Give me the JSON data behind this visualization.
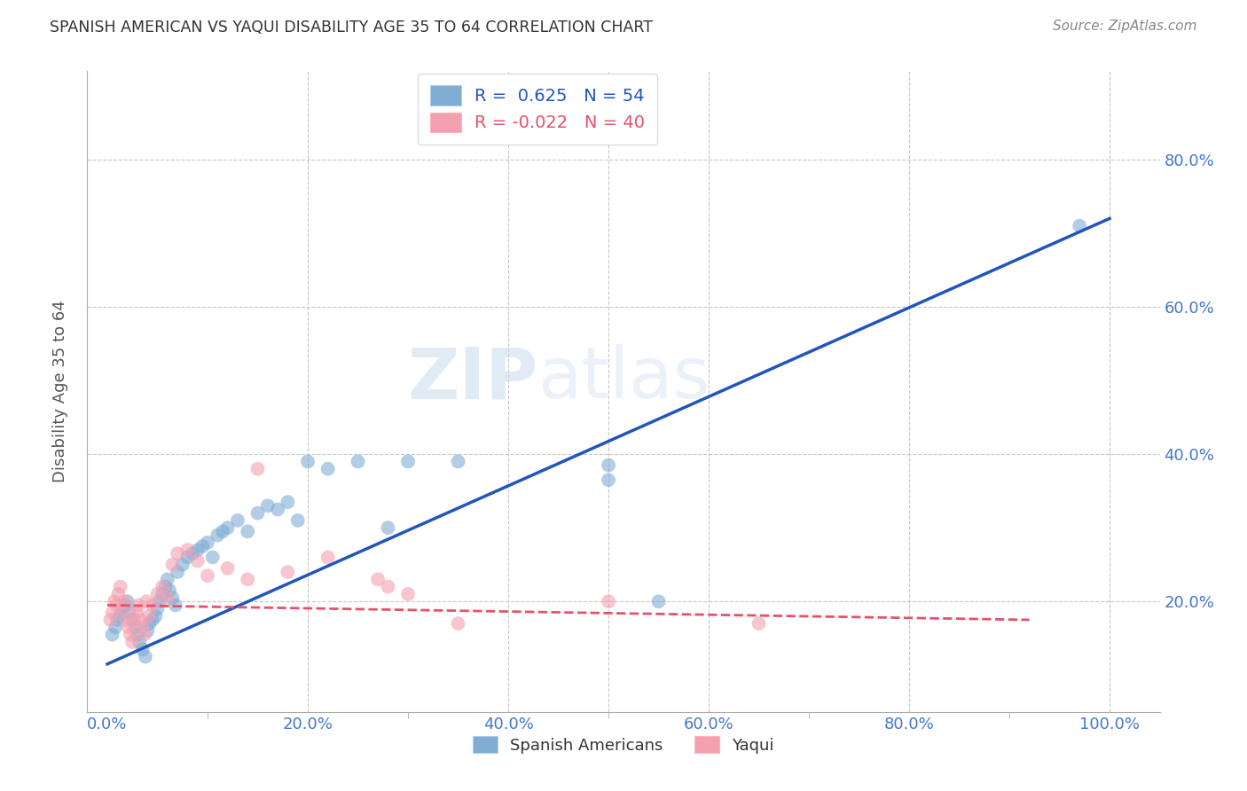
{
  "title": "SPANISH AMERICAN VS YAQUI DISABILITY AGE 35 TO 64 CORRELATION CHART",
  "source": "Source: ZipAtlas.com",
  "ylabel": "Disability Age 35 to 64",
  "watermark_zip": "ZIP",
  "watermark_atlas": "atlas",
  "xlim": [
    -0.02,
    1.05
  ],
  "ylim": [
    0.05,
    0.92
  ],
  "xtick_labels": [
    "0.0%",
    "",
    "20.0%",
    "",
    "40.0%",
    "",
    "60.0%",
    "",
    "80.0%",
    "",
    "100.0%"
  ],
  "xtick_values": [
    0.0,
    0.1,
    0.2,
    0.3,
    0.4,
    0.5,
    0.6,
    0.7,
    0.8,
    0.9,
    1.0
  ],
  "ytick_labels": [
    "20.0%",
    "40.0%",
    "60.0%",
    "80.0%"
  ],
  "ytick_values": [
    0.2,
    0.4,
    0.6,
    0.8
  ],
  "blue_R": 0.625,
  "blue_N": 54,
  "pink_R": -0.022,
  "pink_N": 40,
  "blue_color": "#7fadd4",
  "pink_color": "#f4a0b0",
  "blue_line_color": "#2255bb",
  "pink_line_color": "#e8506a",
  "legend_label_blue": "Spanish Americans",
  "legend_label_pink": "Yaqui",
  "blue_scatter_x": [
    0.005,
    0.008,
    0.01,
    0.012,
    0.015,
    0.017,
    0.02,
    0.022,
    0.025,
    0.028,
    0.03,
    0.032,
    0.035,
    0.038,
    0.04,
    0.042,
    0.045,
    0.048,
    0.05,
    0.052,
    0.055,
    0.058,
    0.06,
    0.062,
    0.065,
    0.068,
    0.07,
    0.075,
    0.08,
    0.085,
    0.09,
    0.095,
    0.1,
    0.105,
    0.11,
    0.115,
    0.12,
    0.13,
    0.14,
    0.15,
    0.16,
    0.17,
    0.18,
    0.19,
    0.2,
    0.22,
    0.25,
    0.28,
    0.3,
    0.35,
    0.5,
    0.55,
    0.97,
    0.5
  ],
  "blue_scatter_y": [
    0.155,
    0.165,
    0.175,
    0.18,
    0.19,
    0.195,
    0.2,
    0.185,
    0.175,
    0.165,
    0.155,
    0.145,
    0.135,
    0.125,
    0.16,
    0.17,
    0.175,
    0.18,
    0.19,
    0.2,
    0.21,
    0.22,
    0.23,
    0.215,
    0.205,
    0.195,
    0.24,
    0.25,
    0.26,
    0.265,
    0.27,
    0.275,
    0.28,
    0.26,
    0.29,
    0.295,
    0.3,
    0.31,
    0.295,
    0.32,
    0.33,
    0.325,
    0.335,
    0.31,
    0.39,
    0.38,
    0.39,
    0.3,
    0.39,
    0.39,
    0.365,
    0.2,
    0.71,
    0.385
  ],
  "pink_scatter_x": [
    0.003,
    0.005,
    0.007,
    0.009,
    0.011,
    0.013,
    0.015,
    0.017,
    0.019,
    0.021,
    0.023,
    0.025,
    0.027,
    0.029,
    0.031,
    0.033,
    0.035,
    0.037,
    0.039,
    0.041,
    0.045,
    0.05,
    0.055,
    0.06,
    0.065,
    0.07,
    0.08,
    0.09,
    0.1,
    0.12,
    0.14,
    0.15,
    0.18,
    0.22,
    0.27,
    0.28,
    0.3,
    0.35,
    0.5,
    0.65
  ],
  "pink_scatter_y": [
    0.175,
    0.185,
    0.2,
    0.195,
    0.21,
    0.22,
    0.19,
    0.2,
    0.175,
    0.165,
    0.155,
    0.145,
    0.175,
    0.185,
    0.195,
    0.175,
    0.165,
    0.155,
    0.2,
    0.18,
    0.195,
    0.21,
    0.22,
    0.205,
    0.25,
    0.265,
    0.27,
    0.255,
    0.235,
    0.245,
    0.23,
    0.38,
    0.24,
    0.26,
    0.23,
    0.22,
    0.21,
    0.17,
    0.2,
    0.17
  ],
  "blue_trend_x": [
    0.0,
    1.0
  ],
  "blue_trend_y": [
    0.115,
    0.72
  ],
  "pink_trend_x": [
    0.0,
    0.92
  ],
  "pink_trend_y": [
    0.195,
    0.175
  ],
  "grid_color": "#c8c8c8",
  "background_color": "#ffffff",
  "title_color": "#333333",
  "axis_label_color": "#555555",
  "tick_color": "#4477cc",
  "source_color": "#888888"
}
